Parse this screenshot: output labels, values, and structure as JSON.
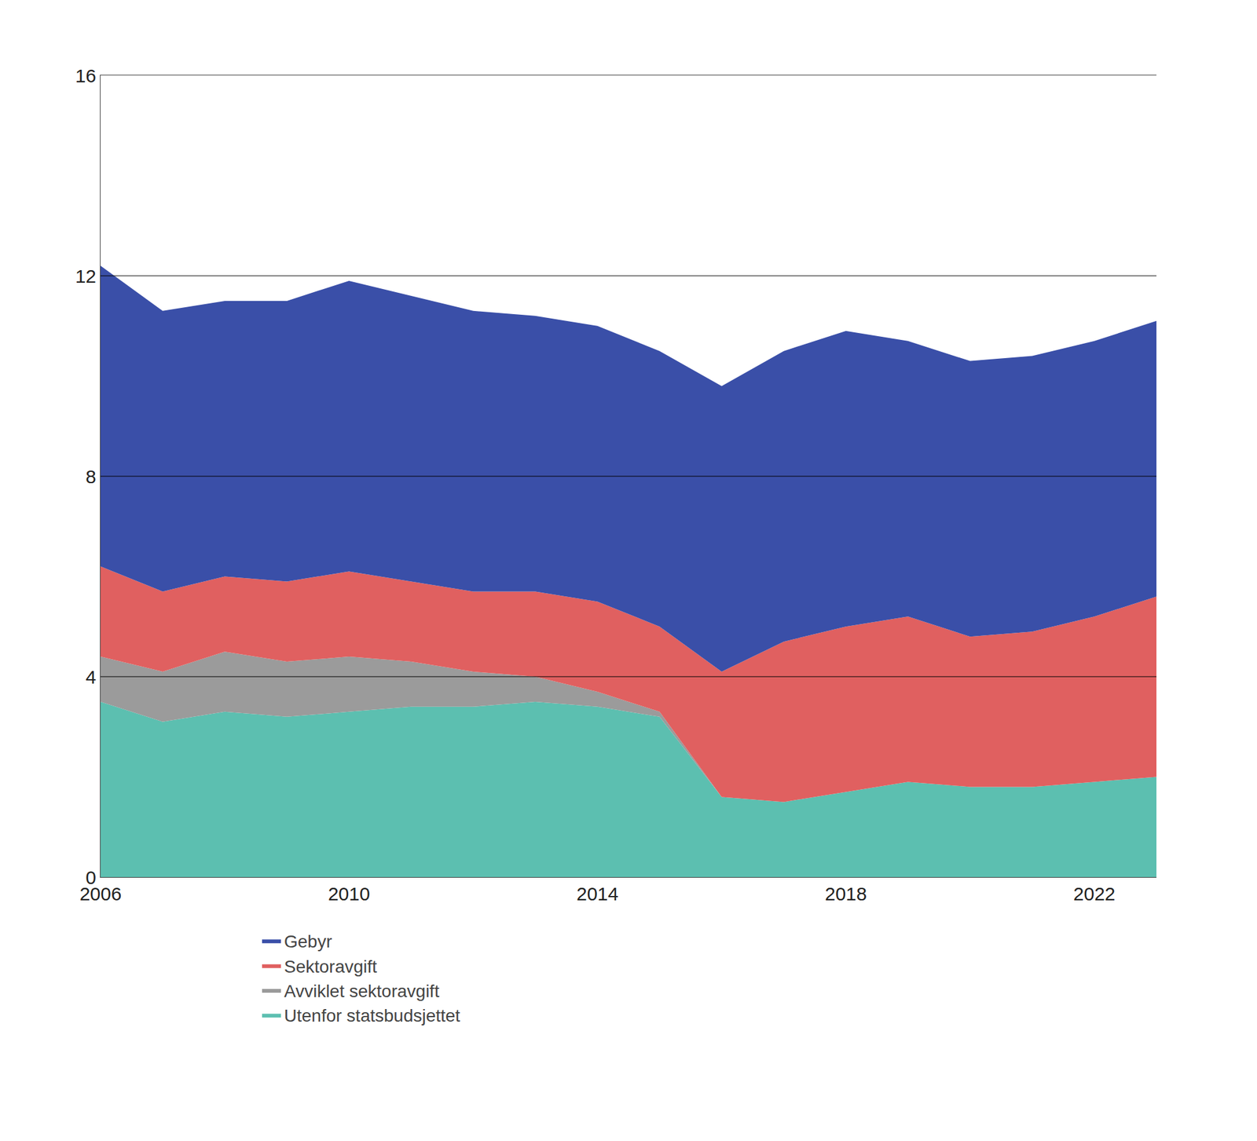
{
  "chart_data": {
    "type": "area",
    "stacked": true,
    "x": [
      2006,
      2007,
      2008,
      2009,
      2010,
      2011,
      2012,
      2013,
      2014,
      2015,
      2016,
      2017,
      2018,
      2019,
      2020,
      2021,
      2022,
      2023
    ],
    "series": [
      {
        "name": "Utenfor statsbudsjettet",
        "color": "#5CBFB0",
        "values": [
          3.5,
          3.1,
          3.3,
          3.2,
          3.3,
          3.4,
          3.4,
          3.5,
          3.4,
          3.2,
          1.6,
          1.5,
          1.7,
          1.9,
          1.8,
          1.8,
          1.9,
          2.0
        ]
      },
      {
        "name": "Avviklet sektoravgift",
        "color": "#9B9B9B",
        "values": [
          0.9,
          1.0,
          1.2,
          1.1,
          1.1,
          0.9,
          0.7,
          0.5,
          0.3,
          0.1,
          0.0,
          0.0,
          0.0,
          0.0,
          0.0,
          0.0,
          0.0,
          0.0
        ]
      },
      {
        "name": "Sektoravgift",
        "color": "#E06060",
        "values": [
          1.8,
          1.6,
          1.5,
          1.6,
          1.7,
          1.6,
          1.6,
          1.7,
          1.8,
          1.7,
          2.5,
          3.2,
          3.3,
          3.3,
          3.0,
          3.1,
          3.3,
          3.6
        ]
      },
      {
        "name": "Gebyr",
        "color": "#3A4FA8",
        "values": [
          6.0,
          5.6,
          5.5,
          5.6,
          5.8,
          5.7,
          5.6,
          5.5,
          5.5,
          5.5,
          5.7,
          5.8,
          5.9,
          5.5,
          5.5,
          5.5,
          5.5,
          5.5
        ]
      }
    ],
    "xlim": [
      2006,
      2023
    ],
    "xticks": [
      2006,
      2010,
      2014,
      2018,
      2022
    ],
    "ylim": [
      0,
      16
    ],
    "yticks": [
      0,
      4,
      8,
      12,
      16
    ],
    "y2lim": [
      0,
      16
    ],
    "y2ticks": [
      0,
      4,
      8,
      12,
      16
    ],
    "grid": true,
    "legend": "bottom"
  }
}
